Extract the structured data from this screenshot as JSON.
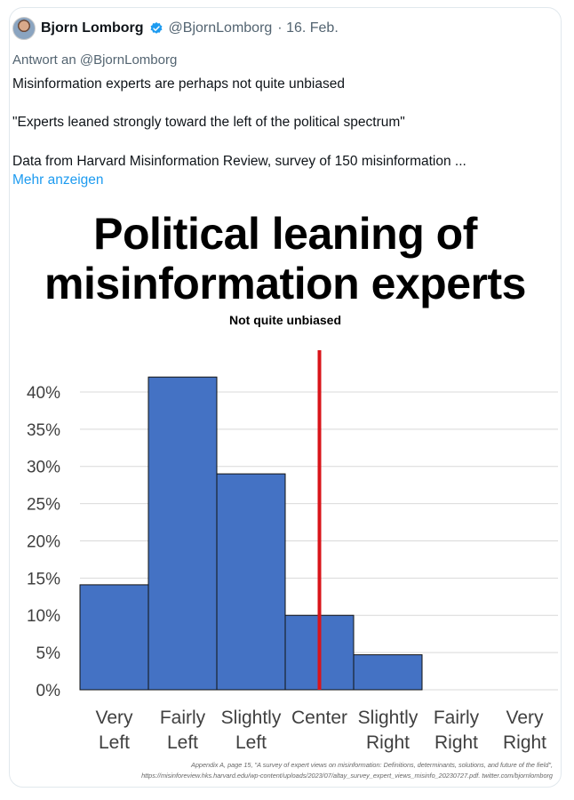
{
  "tweet": {
    "author_name": "Bjorn Lomborg",
    "handle": "@BjornLomborg",
    "date": "· 16. Feb.",
    "reply_to": "Antwort an @BjornLomborg",
    "line1": "Misinformation experts are perhaps not quite unbiased",
    "line2": "\"Experts leaned strongly toward the left of the political spectrum\"",
    "line3": "Data from Harvard Misinformation Review, survey of 150 misinformation ...",
    "show_more": "Mehr anzeigen"
  },
  "chart_data": {
    "type": "bar",
    "title_line1": "Political leaning of",
    "title_line2": "misinformation experts",
    "subtitle": "Not quite unbiased",
    "categories": [
      [
        "Very",
        "Left"
      ],
      [
        "Fairly",
        "Left"
      ],
      [
        "Slightly",
        "Left"
      ],
      [
        "Center",
        ""
      ],
      [
        "Slightly",
        "Right"
      ],
      [
        "Fairly",
        "Right"
      ],
      [
        "Very",
        "Right"
      ]
    ],
    "values": [
      14.1,
      42.0,
      29.0,
      10.0,
      4.7,
      0,
      0
    ],
    "yticks": [
      "0%",
      "5%",
      "10%",
      "15%",
      "20%",
      "25%",
      "30%",
      "35%",
      "40%"
    ],
    "ylim": [
      0,
      42.5
    ],
    "grid": true,
    "bar_color": "#4472c4",
    "center_line_color": "#d9141a",
    "footnote_line1": "Appendix A, page 15, \"A survey of expert views on misinformation: Definitions, determinants, solutions, and future of the field\",",
    "footnote_line2": "https://misinforeview.hks.harvard.edu/wp-content/uploads/2023/07/altay_survey_expert_views_misinfo_20230727.pdf. twitter.com/bjornlomborg"
  }
}
